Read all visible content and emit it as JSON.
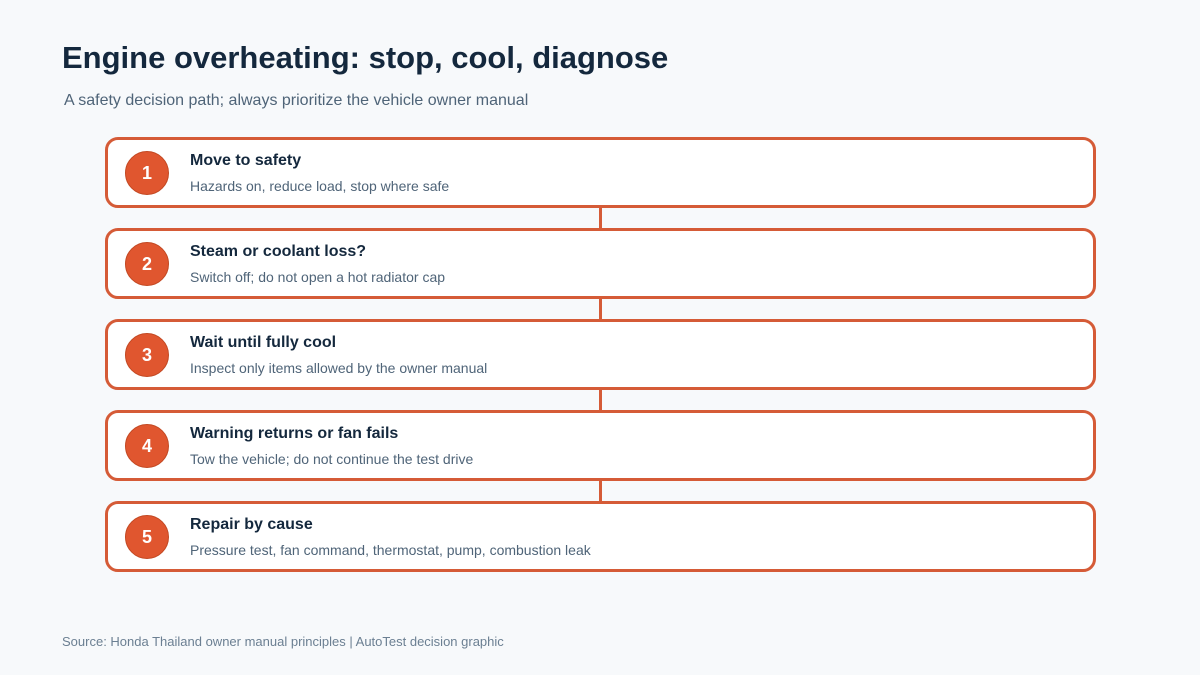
{
  "header": {
    "title": "Engine overheating: stop, cool, diagnose",
    "subtitle": "A safety decision path; always prioritize the vehicle owner manual"
  },
  "steps": [
    {
      "number": "1",
      "title": "Move to safety",
      "description": "Hazards on, reduce load, stop where safe"
    },
    {
      "number": "2",
      "title": "Steam or coolant loss?",
      "description": "Switch off; do not open a hot radiator cap"
    },
    {
      "number": "3",
      "title": "Wait until fully cool",
      "description": "Inspect only items allowed by the owner manual"
    },
    {
      "number": "4",
      "title": "Warning returns or fan fails",
      "description": "Tow the vehicle; do not continue the test drive"
    },
    {
      "number": "5",
      "title": "Repair by cause",
      "description": "Pressure test, fan command, thermostat, pump, combustion leak"
    }
  ],
  "footer": {
    "source": "Source: Honda Thailand owner manual principles | AutoTest decision graphic"
  },
  "colors": {
    "accent": "#e0562f",
    "border": "#d55b37",
    "title_text": "#14283d",
    "muted_text": "#4f6478",
    "background": "#f7f9fb"
  }
}
